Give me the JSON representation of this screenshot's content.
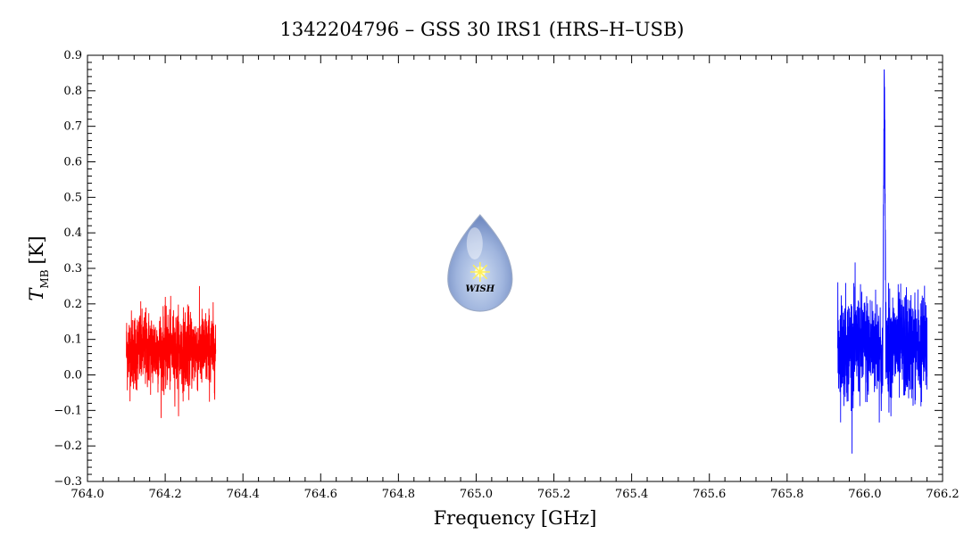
{
  "chart_data": {
    "type": "line",
    "title": "1342204796 – GSS 30 IRS1 (HRS–H–USB)",
    "xlabel": "Frequency [GHz]",
    "ylabel_main": "T",
    "ylabel_sub": "MB",
    "ylabel_unit": "[K]",
    "xlim": [
      764.0,
      766.2
    ],
    "ylim": [
      -0.3,
      0.9
    ],
    "x_ticks": [
      "764.0",
      "764.2",
      "764.4",
      "764.6",
      "764.8",
      "765.0",
      "765.2",
      "765.4",
      "765.6",
      "765.8",
      "766.0",
      "766.2"
    ],
    "y_ticks": [
      "−0.3",
      "−0.2",
      "−0.1",
      "0.0",
      "0.1",
      "0.2",
      "0.3",
      "0.4",
      "0.5",
      "0.6",
      "0.7",
      "0.8",
      "0.9"
    ],
    "grid": false,
    "logo": {
      "text": "WISH",
      "center_x": 765.01,
      "center_y": 0.3
    },
    "series": [
      {
        "color": "#ff0000",
        "x_range": [
          764.1,
          764.33
        ],
        "baseline": 0.07,
        "noise_rms": 0.055,
        "y_min": -0.2,
        "y_max": 0.25
      },
      {
        "color": "#0000ff",
        "x_range": [
          765.93,
          766.16
        ],
        "baseline": 0.08,
        "noise_rms": 0.075,
        "y_min": -0.23,
        "y_max": 0.86,
        "peak_x": 766.05,
        "peak_y": 0.86
      }
    ]
  }
}
